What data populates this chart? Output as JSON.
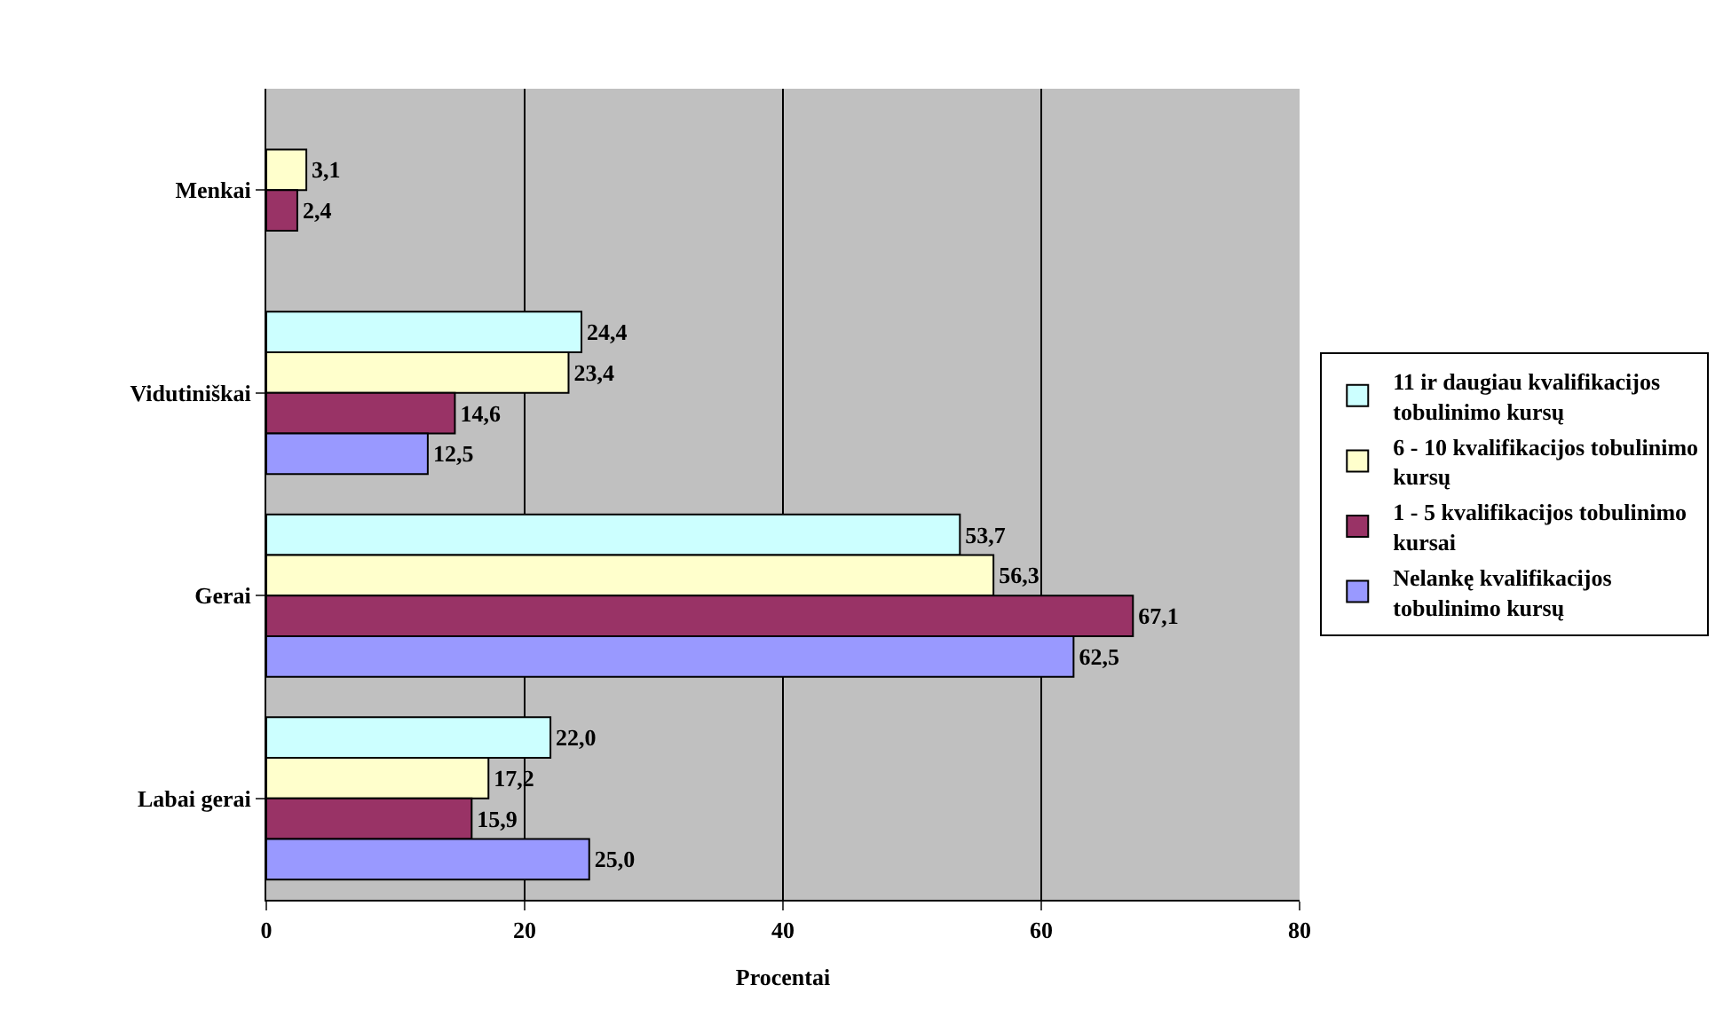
{
  "chart_data": {
    "type": "bar",
    "orientation": "horizontal",
    "categories": [
      "Menkai",
      "Vidutiniškai",
      "Gerai",
      "Labai gerai"
    ],
    "series": [
      {
        "name": "11 ir daugiau kvalifikacijos tobulinimo kursų",
        "color": "#ccffff",
        "values": [
          null,
          24.4,
          53.7,
          22.0
        ],
        "value_labels": [
          null,
          "24,4",
          "53,7",
          "22,0"
        ]
      },
      {
        "name": "6 - 10 kvalifikacijos tobulinimo kursų",
        "color": "#ffffcc",
        "values": [
          3.1,
          23.4,
          56.3,
          17.2
        ],
        "value_labels": [
          "3,1",
          "23,4",
          "56,3",
          "17,2"
        ]
      },
      {
        "name": "1 - 5 kvalifikacijos tobulinimo kursai",
        "color": "#993366",
        "values": [
          2.4,
          14.6,
          67.1,
          15.9
        ],
        "value_labels": [
          "2,4",
          "14,6",
          "67,1",
          "15,9"
        ]
      },
      {
        "name": "Nelankę kvalifikacijos tobulinimo kursų",
        "color": "#9999ff",
        "values": [
          null,
          12.5,
          62.5,
          25.0
        ],
        "value_labels": [
          null,
          "12,5",
          "62,5",
          "25,0"
        ]
      }
    ],
    "xlabel": "Procentai",
    "xlim": [
      0,
      80
    ],
    "xticks": [
      0,
      20,
      40,
      60,
      80
    ],
    "grid": "x",
    "legend": "right"
  }
}
